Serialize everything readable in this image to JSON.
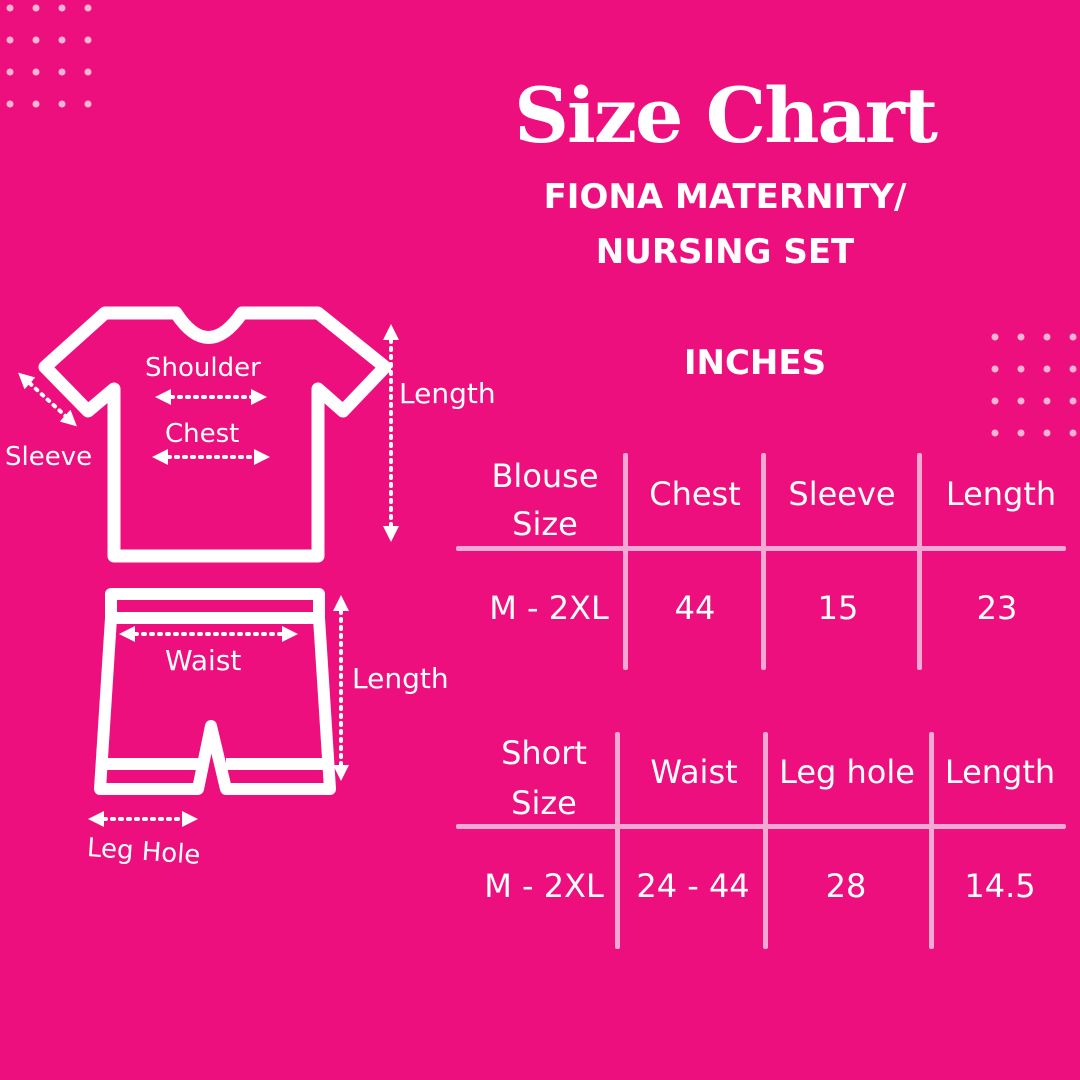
{
  "title": "Size Chart",
  "subtitle_line1": "FIONA MATERNITY/",
  "subtitle_line2": "NURSING SET",
  "units": "INCHES",
  "blouse_table": {
    "headers": [
      "Blouse Size",
      "Chest",
      "Sleeve",
      "Length"
    ],
    "row": [
      "M - 2XL",
      "44",
      "15",
      "23"
    ]
  },
  "shorts_table": {
    "headers": [
      "Short Size",
      "Waist",
      "Leg hole",
      "Length"
    ],
    "row": [
      "M - 2XL",
      "24 - 44",
      "28",
      "14.5"
    ]
  },
  "diagram_labels": {
    "shoulder": "Shoulder",
    "chest": "Chest",
    "sleeve": "Sleeve",
    "top_length": "Length",
    "waist": "Waist",
    "shorts_length": "Length",
    "leg_hole": "Leg Hole"
  },
  "colors": {
    "background": "#EE0F7E",
    "text": "#FFFFFF",
    "table_lines": "#F2A9D4"
  }
}
